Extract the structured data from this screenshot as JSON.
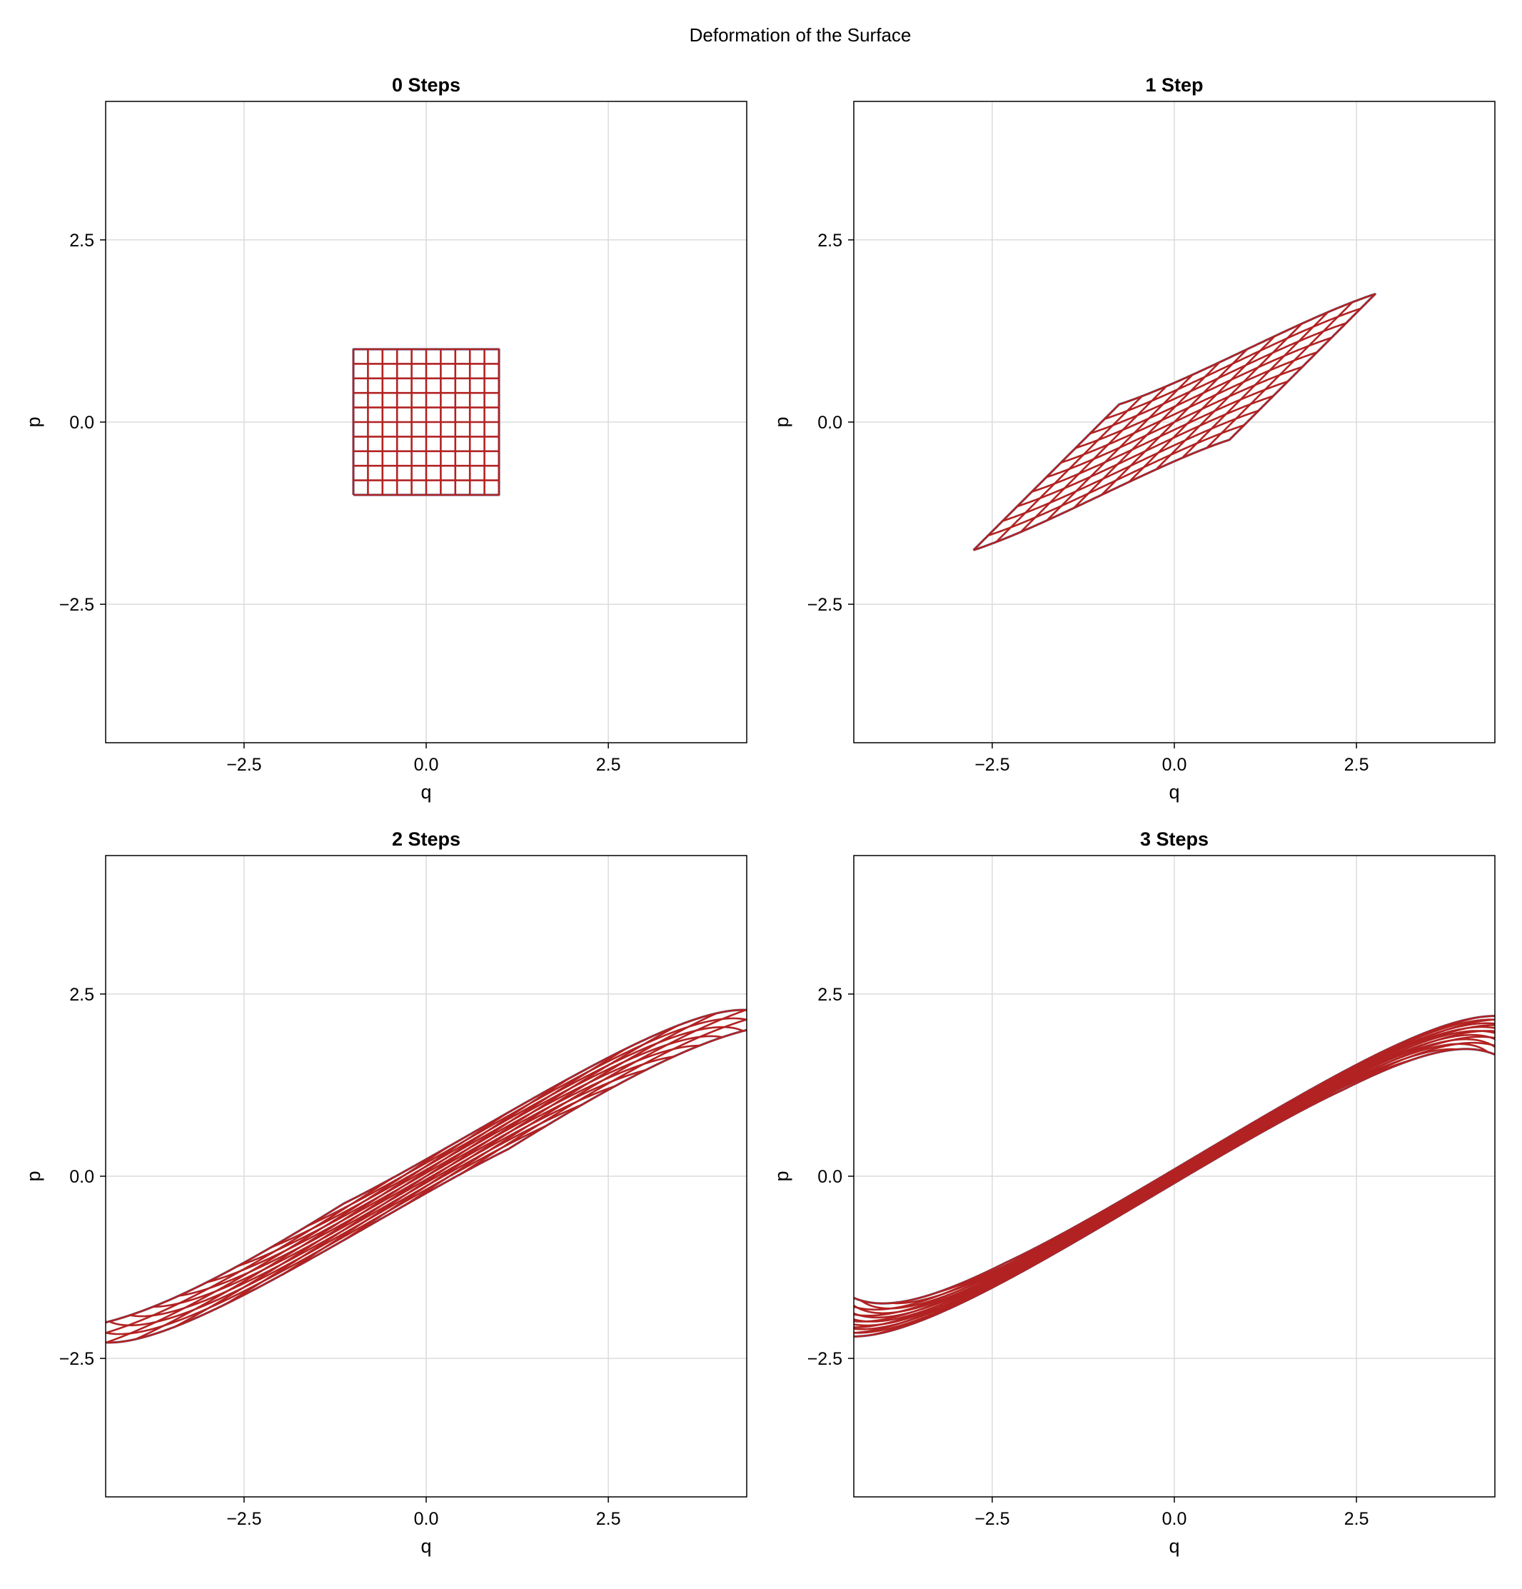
{
  "figure": {
    "title": "Deformation of the Surface"
  },
  "chart_data": [
    {
      "type": "line",
      "title": "0 Steps",
      "xlabel": "q",
      "ylabel": "p",
      "xlim": [
        -4.4,
        4.4
      ],
      "ylim": [
        -4.4,
        4.4
      ],
      "xticks": [
        -2.5,
        0.0,
        2.5
      ],
      "yticks": [
        -2.5,
        0.0,
        2.5
      ],
      "tick_labels": [
        "−2.5",
        "0.0",
        "2.5"
      ],
      "grid": true,
      "steps": 0,
      "initial_region": {
        "q": [
          -1,
          1
        ],
        "p": [
          -1,
          1
        ],
        "grid_lines": 11
      },
      "colors": {
        "boundary": "#4682b4",
        "grid_lines": "#b22222"
      }
    },
    {
      "type": "line",
      "title": "1 Step",
      "xlabel": "q",
      "ylabel": "p",
      "xlim": [
        -4.4,
        4.4
      ],
      "ylim": [
        -4.4,
        4.4
      ],
      "xticks": [
        -2.5,
        0.0,
        2.5
      ],
      "yticks": [
        -2.5,
        0.0,
        2.5
      ],
      "tick_labels": [
        "−2.5",
        "0.0",
        "2.5"
      ],
      "grid": true,
      "steps": 1,
      "initial_region": {
        "q": [
          -1,
          1
        ],
        "p": [
          -1,
          1
        ],
        "grid_lines": 11
      },
      "colors": {
        "boundary": "#4682b4",
        "grid_lines": "#b22222"
      }
    },
    {
      "type": "line",
      "title": "2 Steps",
      "xlabel": "q",
      "ylabel": "p",
      "xlim": [
        -4.4,
        4.4
      ],
      "ylim": [
        -4.4,
        4.4
      ],
      "xticks": [
        -2.5,
        0.0,
        2.5
      ],
      "yticks": [
        -2.5,
        0.0,
        2.5
      ],
      "tick_labels": [
        "−2.5",
        "0.0",
        "2.5"
      ],
      "grid": true,
      "steps": 2,
      "initial_region": {
        "q": [
          -1,
          1
        ],
        "p": [
          -1,
          1
        ],
        "grid_lines": 11
      },
      "colors": {
        "boundary": "#4682b4",
        "grid_lines": "#b22222"
      }
    },
    {
      "type": "line",
      "title": "3 Steps",
      "xlabel": "q",
      "ylabel": "p",
      "xlim": [
        -4.4,
        4.4
      ],
      "ylim": [
        -4.4,
        4.4
      ],
      "xticks": [
        -2.5,
        0.0,
        2.5
      ],
      "yticks": [
        -2.5,
        0.0,
        2.5
      ],
      "tick_labels": [
        "−2.5",
        "0.0",
        "2.5"
      ],
      "grid": true,
      "steps": 3,
      "initial_region": {
        "q": [
          -1,
          1
        ],
        "p": [
          -1,
          1
        ],
        "grid_lines": 11
      },
      "colors": {
        "boundary": "#4682b4",
        "grid_lines": "#b22222"
      }
    }
  ]
}
